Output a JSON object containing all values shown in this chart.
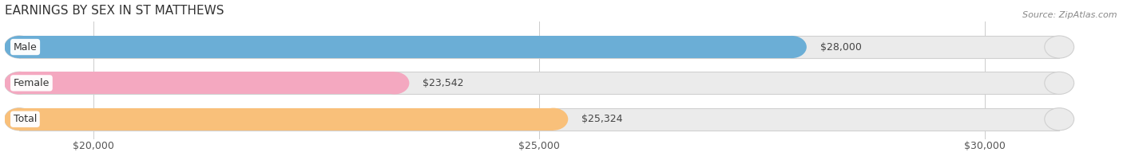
{
  "title": "EARNINGS BY SEX IN ST MATTHEWS",
  "source": "Source: ZipAtlas.com",
  "categories": [
    "Male",
    "Female",
    "Total"
  ],
  "values": [
    28000,
    23542,
    25324
  ],
  "bar_colors": [
    "#6baed6",
    "#f4a8c0",
    "#f9c07a"
  ],
  "bar_bg_color": "#ebebeb",
  "value_labels": [
    "$28,000",
    "$23,542",
    "$25,324"
  ],
  "xmin": 19000,
  "xmax": 31000,
  "xlim_left": 19000,
  "xlim_right": 31500,
  "xticks": [
    20000,
    25000,
    30000
  ],
  "xtick_labels": [
    "$20,000",
    "$25,000",
    "$30,000"
  ],
  "title_fontsize": 11,
  "tick_fontsize": 9,
  "bar_label_fontsize": 9,
  "cat_fontsize": 9,
  "bar_height": 0.62,
  "figsize": [
    14.06,
    1.96
  ],
  "dpi": 100,
  "background_color": "#ffffff",
  "label_bg_border_colors": [
    "#6baed6",
    "#f4a8c0",
    "#f9c07a"
  ]
}
